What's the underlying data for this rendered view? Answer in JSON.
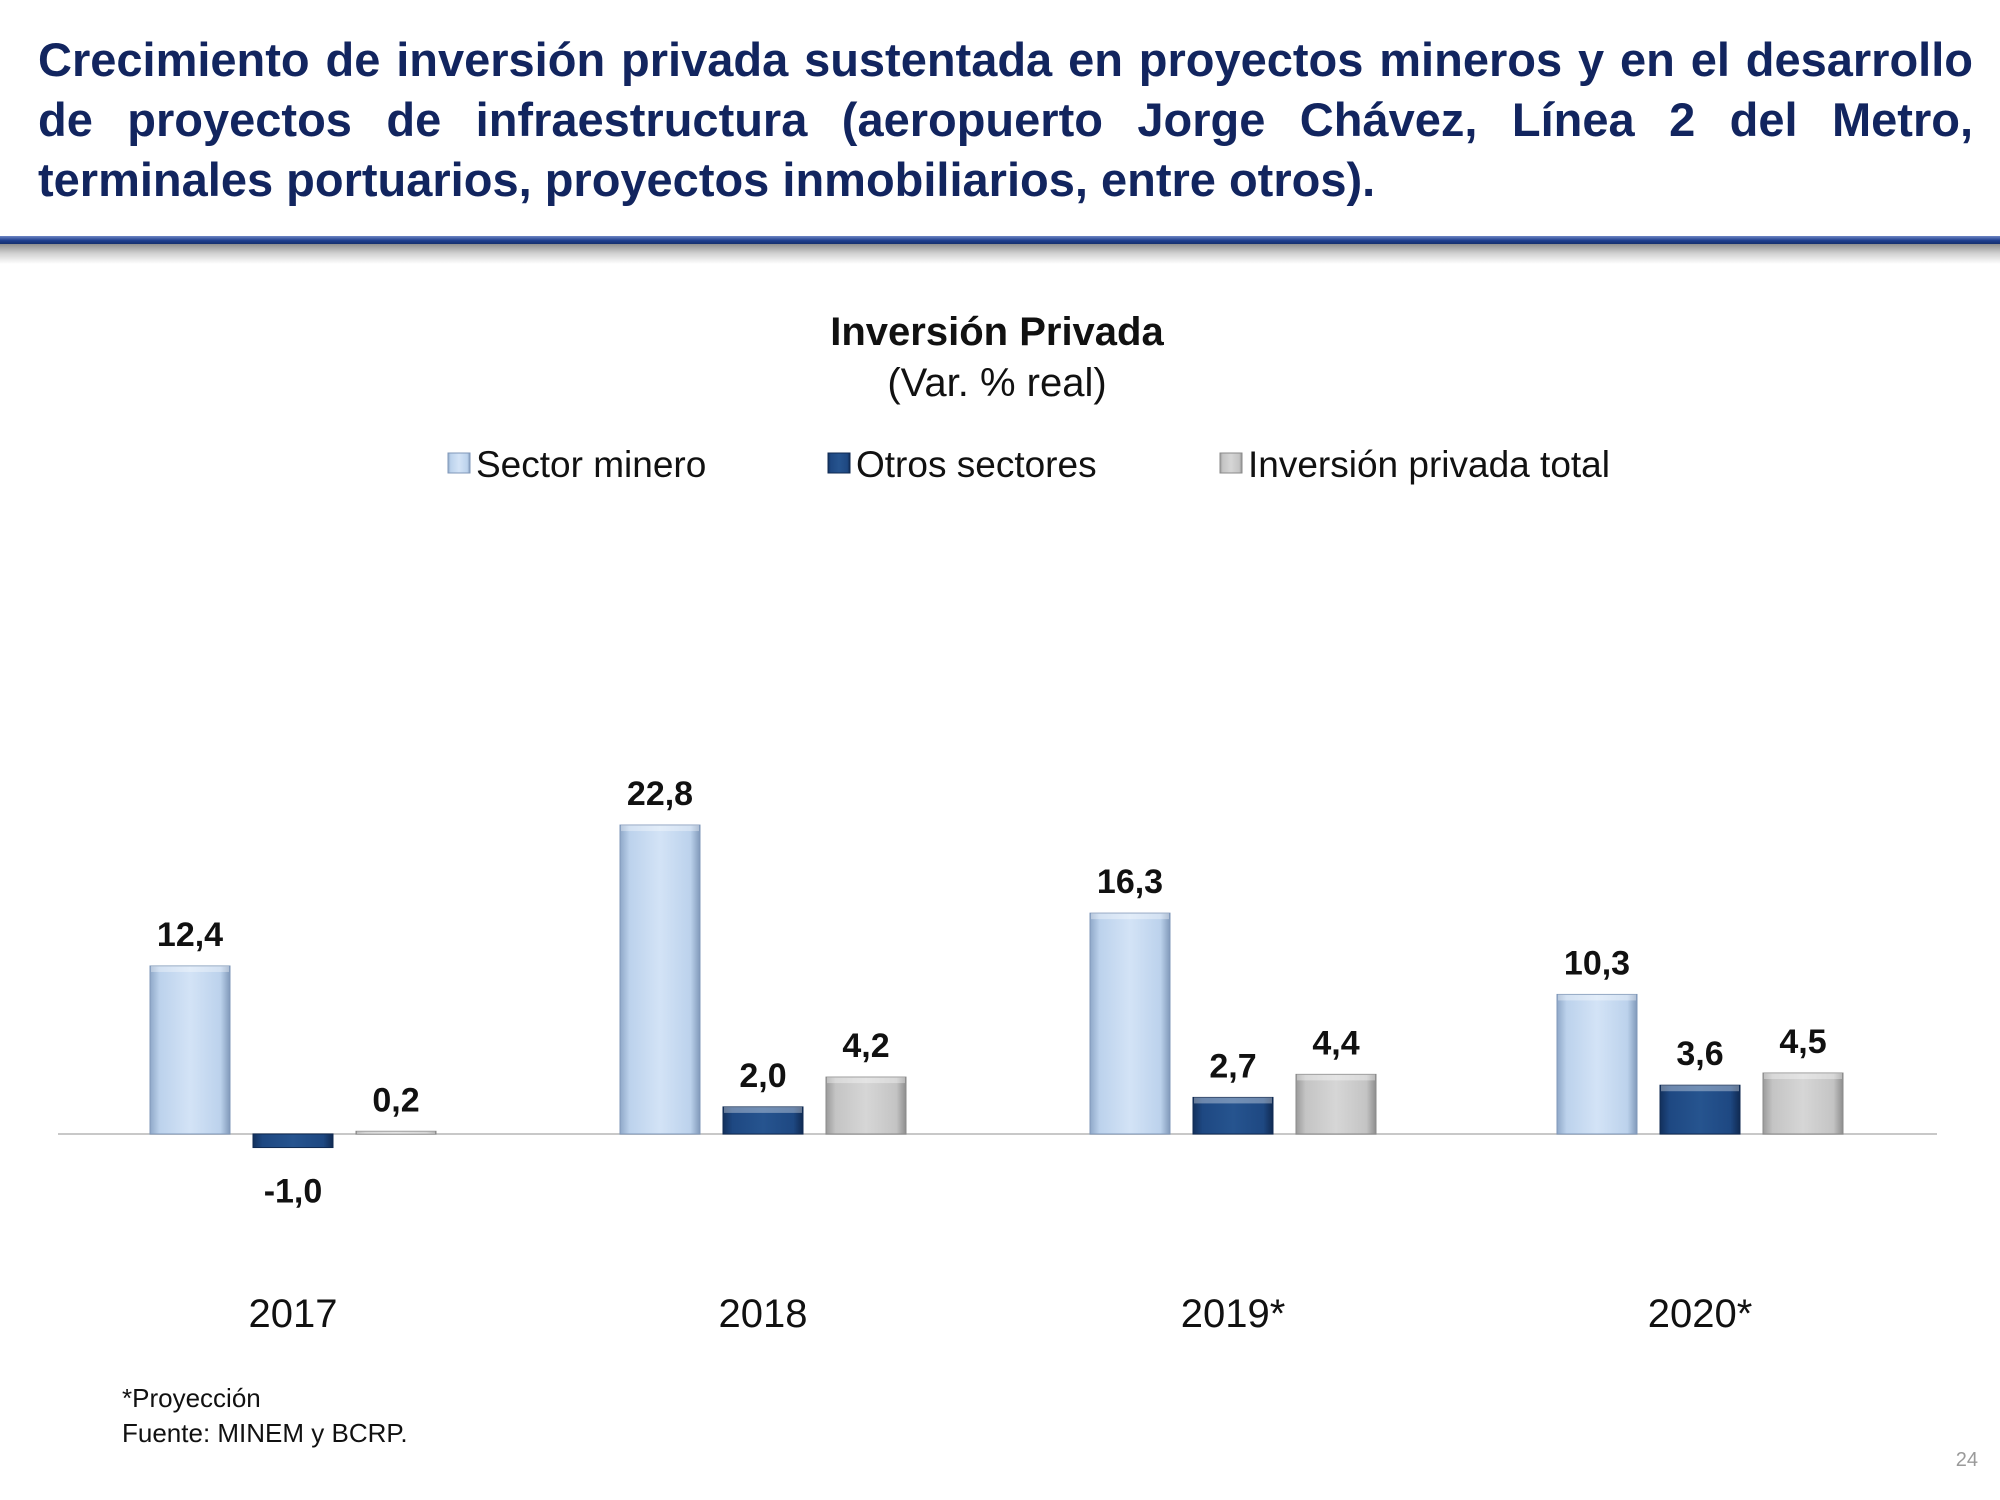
{
  "slide": {
    "title": "Crecimiento de inversión privada sustentada en proyectos mineros y en el desarrollo de proyectos de infraestructura (aeropuerto Jorge Chávez, Línea 2 del Metro, terminales portuarios, proyectos inmobiliarios, entre otros).",
    "footnote": "*Proyección",
    "source": "Fuente: MINEM y BCRP.",
    "page_number": "24"
  },
  "colors": {
    "title": "#12255f",
    "series": [
      "#c6daf2",
      "#1f4a85",
      "#c9c9c9"
    ]
  },
  "chart_data": {
    "type": "bar",
    "title": "Inversión Privada",
    "subtitle": "(Var. % real)",
    "categories": [
      "2017",
      "2018",
      "2019*",
      "2020*"
    ],
    "series": [
      {
        "name": "Sector minero",
        "values": [
          12.4,
          22.8,
          16.3,
          10.3
        ],
        "labels": [
          "12,4",
          "22,8",
          "16,3",
          "10,3"
        ]
      },
      {
        "name": "Otros sectores",
        "values": [
          -1.0,
          2.0,
          2.7,
          3.6
        ],
        "labels": [
          "-1,0",
          "2,0",
          "2,7",
          "3,6"
        ]
      },
      {
        "name": "Inversión privada total",
        "values": [
          0.2,
          4.2,
          4.4,
          4.5
        ],
        "labels": [
          "0,2",
          "4,2",
          "4,4",
          "4,5"
        ]
      }
    ],
    "legend_position": "top",
    "grid": false
  }
}
